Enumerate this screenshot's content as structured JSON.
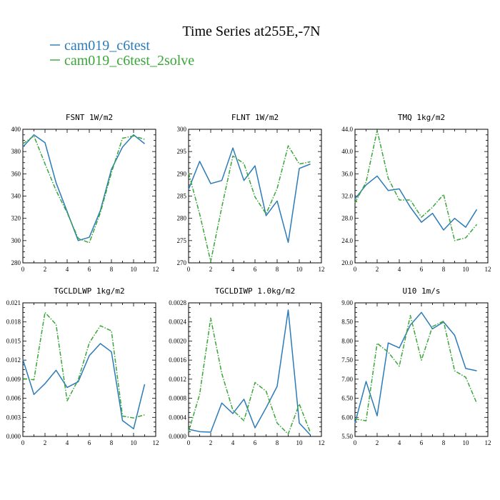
{
  "title": "Time Series at255E,-7N",
  "colors": {
    "series1": "#2b7bb9",
    "series2": "#3aa63a"
  },
  "legend": [
    {
      "name": "cam019_c6test",
      "color": "#2b7bb9"
    },
    {
      "name": "cam019_c6test_2solve",
      "color": "#3aa63a"
    }
  ],
  "chart_data": [
    {
      "type": "line",
      "title": "FSNT   1W/m2",
      "x": [
        0,
        1,
        2,
        3,
        4,
        5,
        6,
        7,
        8,
        9,
        10,
        11
      ],
      "xlim": [
        0,
        12
      ],
      "xticks": [
        "0",
        "2",
        "4",
        "6",
        "8",
        "10",
        "12"
      ],
      "ylim": [
        280,
        400
      ],
      "yticks": [
        "280",
        "300",
        "320",
        "340",
        "360",
        "380",
        "400"
      ],
      "series": [
        {
          "name": "cam019_c6test",
          "values": [
            384,
            395,
            388,
            352,
            326,
            300,
            303,
            327,
            364,
            384,
            395,
            387
          ]
        },
        {
          "name": "cam019_c6test_2solve",
          "values": [
            387,
            394,
            369,
            345,
            325,
            302,
            298,
            325,
            361,
            392,
            394,
            391
          ]
        }
      ]
    },
    {
      "type": "line",
      "title": "FLNT   1W/m2",
      "x": [
        0,
        1,
        2,
        3,
        4,
        5,
        6,
        7,
        8,
        9,
        10,
        11
      ],
      "xlim": [
        0,
        12
      ],
      "xticks": [
        "0",
        "2",
        "4",
        "6",
        "8",
        "10",
        "12"
      ],
      "ylim": [
        270,
        300
      ],
      "yticks": [
        "270",
        "275",
        "280",
        "285",
        "290",
        "295",
        "300"
      ],
      "series": [
        {
          "name": "cam019_c6test",
          "values": [
            286.5,
            292.8,
            287.8,
            288.5,
            295.8,
            288.5,
            291.8,
            280.6,
            283.9,
            274.6,
            291.2,
            292.2
          ]
        },
        {
          "name": "cam019_c6test_2solve",
          "values": [
            290.2,
            281.0,
            270.3,
            282.5,
            294.0,
            292.3,
            284.8,
            281.0,
            286.7,
            296.3,
            292.2,
            292.7
          ]
        }
      ]
    },
    {
      "type": "line",
      "title": "TMQ   1kg/m2",
      "x": [
        0,
        1,
        2,
        3,
        4,
        5,
        6,
        7,
        8,
        9,
        10,
        11
      ],
      "xlim": [
        0,
        12
      ],
      "xticks": [
        "0",
        "2",
        "4",
        "6",
        "8",
        "10",
        "12"
      ],
      "ylim": [
        20,
        44
      ],
      "yticks": [
        "20.0",
        "24.0",
        "28.0",
        "32.0",
        "36.0",
        "40.0",
        "44.0"
      ],
      "series": [
        {
          "name": "cam019_c6test",
          "values": [
            31.5,
            34.0,
            35.6,
            33.0,
            33.3,
            30.0,
            27.3,
            28.9,
            25.9,
            28.0,
            26.4,
            29.6
          ]
        },
        {
          "name": "cam019_c6test_2solve",
          "values": [
            30.8,
            34.5,
            43.8,
            35.2,
            31.3,
            31.3,
            28.2,
            30.0,
            32.3,
            24.0,
            24.5,
            26.9
          ]
        }
      ]
    },
    {
      "type": "line",
      "title": "TGCLDLWP   1kg/m2",
      "x": [
        0,
        1,
        2,
        3,
        4,
        5,
        6,
        7,
        8,
        9,
        10,
        11
      ],
      "xlim": [
        0,
        12
      ],
      "xticks": [
        "0",
        "2",
        "4",
        "6",
        "8",
        "10",
        "12"
      ],
      "ylim": [
        0,
        0.021
      ],
      "yticks": [
        "0.000",
        "0.003",
        "0.006",
        "0.009",
        "0.012",
        "0.015",
        "0.018",
        "0.021"
      ],
      "series": [
        {
          "name": "cam019_c6test",
          "values": [
            0.0121,
            0.0066,
            0.0083,
            0.0104,
            0.0077,
            0.0086,
            0.0127,
            0.0146,
            0.0133,
            0.0025,
            0.0012,
            0.0082
          ]
        },
        {
          "name": "cam019_c6test_2solve",
          "values": [
            0.0091,
            0.0089,
            0.0195,
            0.0176,
            0.0056,
            0.0089,
            0.0147,
            0.0174,
            0.0166,
            0.0032,
            0.0029,
            0.0034
          ]
        }
      ]
    },
    {
      "type": "line",
      "title": "TGCLDIWP   1.0kg/m2",
      "x": [
        0,
        1,
        2,
        3,
        4,
        5,
        6,
        7,
        8,
        9,
        10,
        11
      ],
      "xlim": [
        0,
        12
      ],
      "xticks": [
        "0",
        "2",
        "4",
        "6",
        "8",
        "10",
        "12"
      ],
      "ylim": [
        0,
        0.0028
      ],
      "yticks": [
        "0.0000",
        "0.0004",
        "0.0008",
        "0.0012",
        "0.0016",
        "0.0020",
        "0.0024",
        "0.0028"
      ],
      "series": [
        {
          "name": "cam019_c6test",
          "values": [
            0.00015,
            0.0001,
            9e-05,
            0.0007,
            0.00048,
            0.00078,
            0.00018,
            0.0006,
            0.00105,
            0.00265,
            0.00028,
            3e-05
          ]
        },
        {
          "name": "cam019_c6test_2solve",
          "values": [
            0.0001,
            0.00088,
            0.00248,
            0.00132,
            0.00055,
            0.00033,
            0.00113,
            0.00095,
            0.00028,
            5e-05,
            0.00068,
            8e-05
          ]
        }
      ]
    },
    {
      "type": "line",
      "title": "U10   1m/s",
      "x": [
        0,
        1,
        2,
        3,
        4,
        5,
        6,
        7,
        8,
        9,
        10,
        11
      ],
      "xlim": [
        0,
        12
      ],
      "xticks": [
        "0",
        "2",
        "4",
        "6",
        "8",
        "10",
        "12"
      ],
      "ylim": [
        5.5,
        9.0
      ],
      "yticks": [
        "5.50",
        "6.00",
        "6.50",
        "7.00",
        "7.50",
        "8.00",
        "8.50",
        "9.00"
      ],
      "series": [
        {
          "name": "cam019_c6test",
          "values": [
            5.85,
            6.94,
            6.04,
            7.95,
            7.82,
            8.42,
            8.75,
            8.32,
            8.5,
            8.15,
            7.28,
            7.22
          ]
        },
        {
          "name": "cam019_c6test_2solve",
          "values": [
            5.96,
            5.91,
            7.94,
            7.71,
            7.34,
            8.67,
            7.5,
            8.38,
            8.52,
            7.22,
            7.05,
            6.37
          ]
        }
      ]
    }
  ]
}
